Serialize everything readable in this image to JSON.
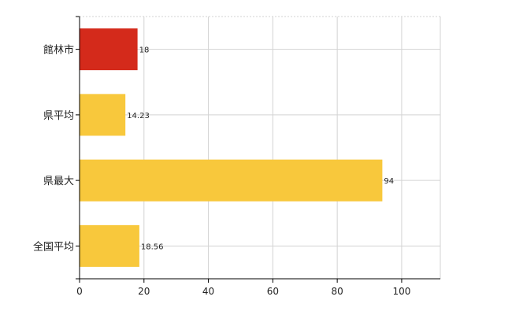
{
  "chart_data": {
    "type": "bar",
    "orientation": "horizontal",
    "categories": [
      "館林市",
      "県平均",
      "県最大",
      "全国平均"
    ],
    "values": [
      18,
      14.23,
      94,
      18.56
    ],
    "value_labels": [
      "18",
      "14.23",
      "94",
      "18.56"
    ],
    "bar_colors": [
      "#d42a1b",
      "#f8c83c",
      "#f8c83c",
      "#f8c83c"
    ],
    "xlim": [
      0,
      112
    ],
    "xticks": [
      0,
      20,
      40,
      60,
      80,
      100
    ],
    "xtick_labels": [
      "0",
      "20",
      "40",
      "60",
      "80",
      "100"
    ],
    "grid": true,
    "legend": "none"
  }
}
